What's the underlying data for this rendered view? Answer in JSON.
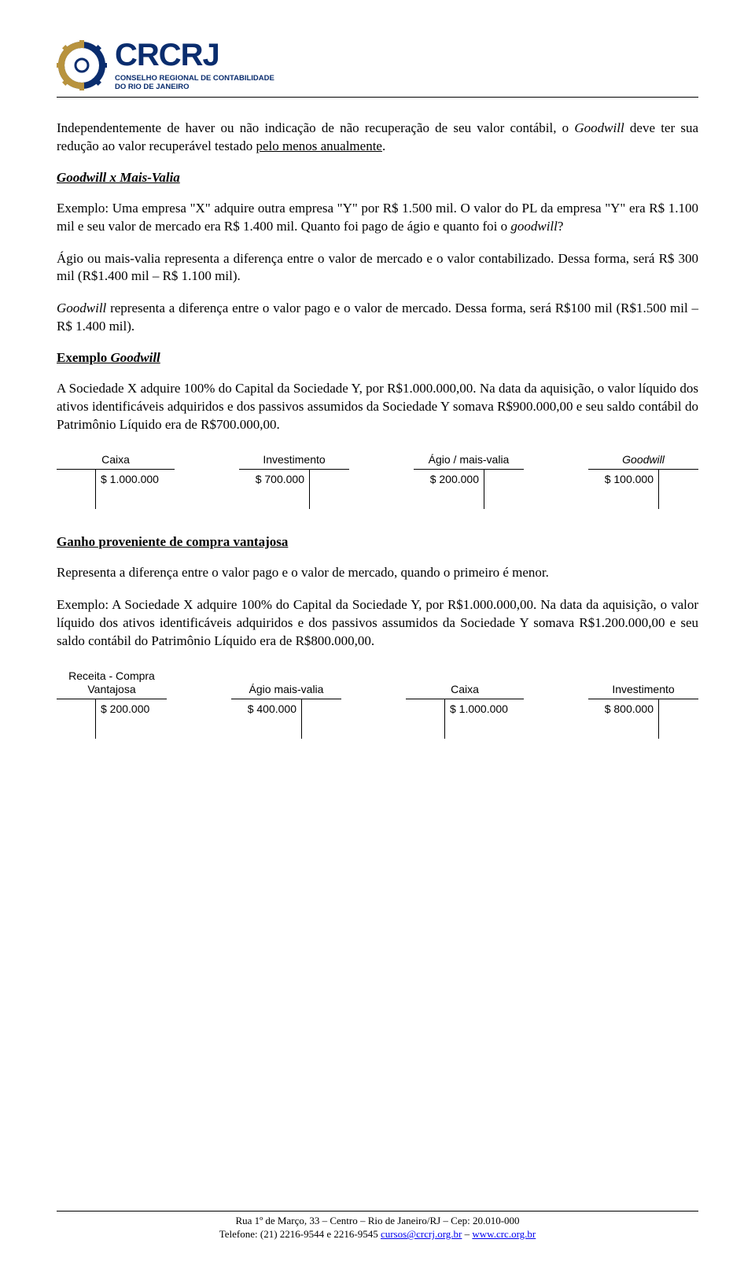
{
  "logo": {
    "name": "CRCRJ",
    "subline1": "CONSELHO REGIONAL DE CONTABILIDADE",
    "subline2": "DO RIO DE JANEIRO",
    "gold": "#b8933e",
    "navy": "#0a2d6e"
  },
  "p1": {
    "a": "Independentemente de haver ou não indicação de não recuperação de seu valor contábil, o ",
    "b": "Goodwill",
    "c": " deve ter sua redução ao valor recuperável testado ",
    "d": "pelo menos anualmente",
    "e": "."
  },
  "h1": "Goodwill x Mais-Valia",
  "p2": {
    "a": "Exemplo: Uma empresa \"X\" adquire outra empresa \"Y\" por R$ 1.500 mil. O valor do PL da empresa \"Y\" era R$ 1.100 mil e seu valor de mercado era R$ 1.400 mil. Quanto foi pago de ágio e quanto foi o ",
    "b": "goodwill",
    "c": "?"
  },
  "p3": "Ágio ou mais-valia representa a diferença entre o valor de mercado e o valor contabilizado. Dessa forma, será R$ 300 mil (R$1.400 mil – R$ 1.100 mil).",
  "p4": {
    "a": "Goodwill",
    "b": " representa a diferença entre o valor pago e o valor de mercado. Dessa forma, será R$100 mil (R$1.500 mil – R$ 1.400 mil)."
  },
  "h2a": "Exemplo ",
  "h2b": "Goodwill",
  "p5": "A Sociedade X adquire 100% do Capital da Sociedade Y, por R$1.000.000,00. Na data da aquisição, o valor líquido dos ativos identificáveis adquiridos e dos passivos assumidos da Sociedade Y somava R$900.000,00 e seu saldo contábil do Patrimônio Líquido era de R$700.000,00.",
  "tacc1": [
    {
      "title": "Caixa",
      "left": "",
      "right": "$ 1.000.000",
      "lw": 50,
      "rw": 100
    },
    {
      "title": "Investimento",
      "left": "$ 700.000",
      "right": "",
      "lw": 90,
      "rw": 50
    },
    {
      "title": "Ágio / mais-valia",
      "left": "$ 200.000",
      "right": "",
      "lw": 90,
      "rw": 50
    },
    {
      "title": "Goodwill",
      "left": "$ 100.000",
      "right": "",
      "lw": 90,
      "rw": 50
    }
  ],
  "h3": "Ganho proveniente de compra vantajosa",
  "p6": "Representa a diferença entre o valor pago e o valor de mercado, quando o primeiro é menor.",
  "p7": "Exemplo: A Sociedade X adquire 100% do Capital da Sociedade Y, por R$1.000.000,00. Na data da aquisição, o valor líquido dos ativos identificáveis adquiridos e dos passivos assumidos da Sociedade Y somava R$1.200.000,00 e seu saldo contábil do Patrimônio Líquido era de R$800.000,00.",
  "tacc2": [
    {
      "title1": "Receita - Compra",
      "title2": "Vantajosa",
      "left": "",
      "right": "$ 200.000",
      "lw": 50,
      "rw": 90
    },
    {
      "title1": "",
      "title2": "Ágio mais-valia",
      "left": "$ 400.000",
      "right": "",
      "lw": 90,
      "rw": 50
    },
    {
      "title1": "",
      "title2": "Caixa",
      "left": "",
      "right": "$ 1.000.000",
      "lw": 50,
      "rw": 100
    },
    {
      "title1": "",
      "title2": "Investimento",
      "left": "$ 800.000",
      "right": "",
      "lw": 90,
      "rw": 50
    }
  ],
  "footer": {
    "line1": "Rua 1º de Março, 33 – Centro – Rio de Janeiro/RJ – Cep: 20.010-000",
    "line2a": "Telefone: (21) 2216-9544 e 2216-9545 ",
    "email": "cursos@crcrj.org.br",
    "line2b": " – ",
    "url": "www.crc.org.br"
  }
}
